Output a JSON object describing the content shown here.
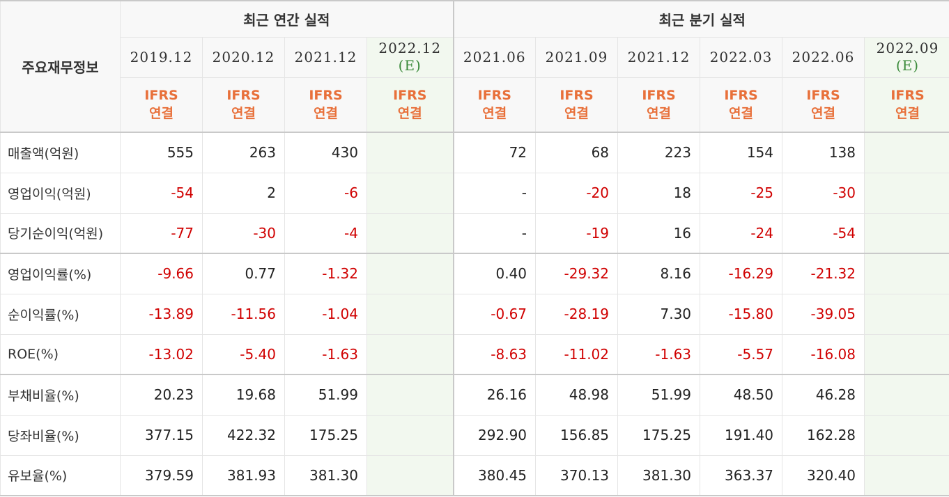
{
  "header": {
    "corner_label": "주요재무정보",
    "annual_label": "최근 연간 실적",
    "quarter_label": "최근 분기 실적",
    "estimate_mark": "(E)",
    "ifrs_line1": "IFRS",
    "ifrs_line2": "연결",
    "annual_periods": [
      "2019.12",
      "2020.12",
      "2021.12",
      "2022.12"
    ],
    "quarter_periods": [
      "2021.06",
      "2021.09",
      "2021.12",
      "2022.03",
      "2022.06",
      "2022.09"
    ]
  },
  "rows": [
    {
      "label": "매출액(억원)",
      "annual": [
        "555",
        "263",
        "430",
        ""
      ],
      "quarter": [
        "72",
        "68",
        "223",
        "154",
        "138",
        ""
      ]
    },
    {
      "label": "영업이익(억원)",
      "annual": [
        "-54",
        "2",
        "-6",
        ""
      ],
      "quarter": [
        "-",
        "-20",
        "18",
        "-25",
        "-30",
        ""
      ]
    },
    {
      "label": "당기순이익(억원)",
      "annual": [
        "-77",
        "-30",
        "-4",
        ""
      ],
      "quarter": [
        "-",
        "-19",
        "16",
        "-24",
        "-54",
        ""
      ]
    },
    {
      "label": "영업이익률(%)",
      "annual": [
        "-9.66",
        "0.77",
        "-1.32",
        ""
      ],
      "quarter": [
        "0.40",
        "-29.32",
        "8.16",
        "-16.29",
        "-21.32",
        ""
      ]
    },
    {
      "label": "순이익률(%)",
      "annual": [
        "-13.89",
        "-11.56",
        "-1.04",
        ""
      ],
      "quarter": [
        "-0.67",
        "-28.19",
        "7.30",
        "-15.80",
        "-39.05",
        ""
      ]
    },
    {
      "label": "ROE(%)",
      "annual": [
        "-13.02",
        "-5.40",
        "-1.63",
        ""
      ],
      "quarter": [
        "-8.63",
        "-11.02",
        "-1.63",
        "-5.57",
        "-16.08",
        ""
      ]
    },
    {
      "label": "부채비율(%)",
      "annual": [
        "20.23",
        "19.68",
        "51.99",
        ""
      ],
      "quarter": [
        "26.16",
        "48.98",
        "51.99",
        "48.50",
        "46.28",
        ""
      ]
    },
    {
      "label": "당좌비율(%)",
      "annual": [
        "377.15",
        "422.32",
        "175.25",
        ""
      ],
      "quarter": [
        "292.90",
        "156.85",
        "175.25",
        "191.40",
        "162.28",
        ""
      ]
    },
    {
      "label": "유보율(%)",
      "annual": [
        "379.59",
        "381.93",
        "381.30",
        ""
      ],
      "quarter": [
        "380.45",
        "370.13",
        "381.30",
        "363.37",
        "320.40",
        ""
      ]
    }
  ],
  "colors": {
    "negative": "#d00000",
    "ifrs": "#e8703a",
    "estimate": "#3a8a3a",
    "estimate_bg": "#f2f8ef"
  }
}
